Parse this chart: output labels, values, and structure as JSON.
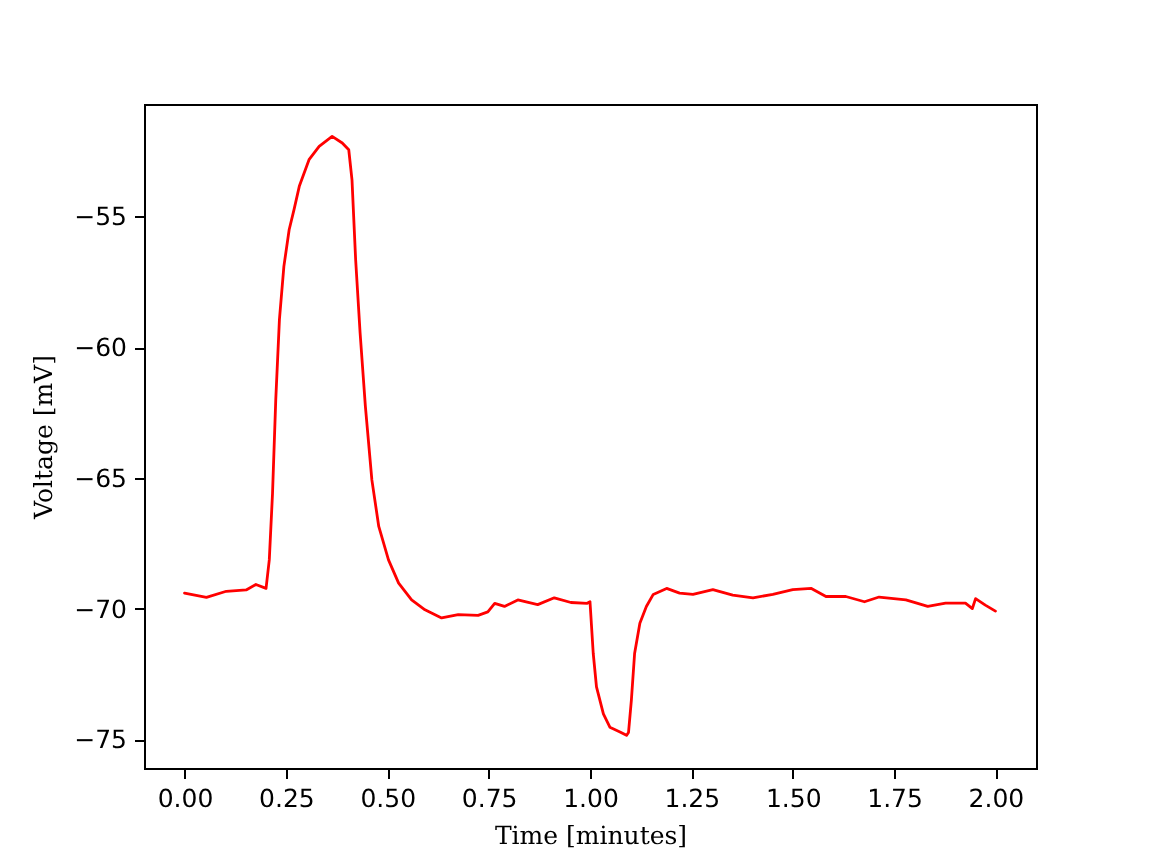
{
  "chart_data": {
    "type": "line",
    "xlabel": "Time [minutes]",
    "ylabel": "Voltage [mV]",
    "marker": "none",
    "line_style": "solid",
    "xlim": [
      -0.1,
      2.1
    ],
    "ylim": [
      -76.1,
      -50.7
    ],
    "xticks": [
      {
        "value": 0,
        "label": "0.00"
      },
      {
        "value": 0.25,
        "label": "0.25"
      },
      {
        "value": 0.5,
        "label": "0.50"
      },
      {
        "value": 0.75,
        "label": "0.75"
      },
      {
        "value": 1,
        "label": "1.00"
      },
      {
        "value": 1.25,
        "label": "1.25"
      },
      {
        "value": 1.5,
        "label": "1.50"
      },
      {
        "value": 1.75,
        "label": "1.75"
      },
      {
        "value": 2,
        "label": "2.00"
      }
    ],
    "yticks": [
      {
        "value": -75,
        "label": "−75"
      },
      {
        "value": -70,
        "label": "−70"
      },
      {
        "value": -65,
        "label": "−65"
      },
      {
        "value": -60,
        "label": "−60"
      },
      {
        "value": -55,
        "label": "−55"
      }
    ],
    "x": [
      0,
      0.054,
      0.103,
      0.152,
      0.176,
      0.201,
      0.209,
      0.217,
      0.225,
      0.234,
      0.245,
      0.258,
      0.27,
      0.283,
      0.307,
      0.332,
      0.364,
      0.389,
      0.405,
      0.413,
      0.422,
      0.433,
      0.446,
      0.462,
      0.479,
      0.503,
      0.528,
      0.56,
      0.593,
      0.634,
      0.675,
      0.724,
      0.748,
      0.765,
      0.789,
      0.822,
      0.871,
      0.912,
      0.953,
      0.993,
      1.0,
      1.008,
      1.016,
      1.033,
      1.049,
      1.074,
      1.09,
      1.095,
      1.102,
      1.11,
      1.123,
      1.139,
      1.156,
      1.189,
      1.221,
      1.254,
      1.303,
      1.352,
      1.402,
      1.451,
      1.5,
      1.546,
      1.582,
      1.631,
      1.677,
      1.713,
      1.779,
      1.833,
      1.877,
      1.926,
      1.943,
      1.951,
      1.975,
      2.0
    ],
    "series": [
      {
        "color": "#ff0000",
        "values": [
          -69.41,
          -69.57,
          -69.34,
          -69.29,
          -69.08,
          -69.23,
          -68.14,
          -65.59,
          -62.0,
          -58.95,
          -56.91,
          -55.51,
          -54.74,
          -53.85,
          -52.83,
          -52.32,
          -51.94,
          -52.19,
          -52.45,
          -53.6,
          -56.66,
          -59.46,
          -62.27,
          -65.08,
          -66.86,
          -68.14,
          -69.03,
          -69.67,
          -70.05,
          -70.36,
          -70.23,
          -70.26,
          -70.13,
          -69.8,
          -69.92,
          -69.67,
          -69.85,
          -69.59,
          -69.77,
          -69.8,
          -69.74,
          -71.72,
          -73.0,
          -74.03,
          -74.54,
          -74.72,
          -74.85,
          -74.74,
          -73.51,
          -71.72,
          -70.56,
          -69.92,
          -69.46,
          -69.23,
          -69.41,
          -69.46,
          -69.28,
          -69.49,
          -69.59,
          -69.46,
          -69.28,
          -69.23,
          -69.54,
          -69.54,
          -69.74,
          -69.56,
          -69.67,
          -69.92,
          -69.79,
          -69.79,
          -70.0,
          -69.62,
          -69.87,
          -70.1
        ]
      }
    ]
  }
}
